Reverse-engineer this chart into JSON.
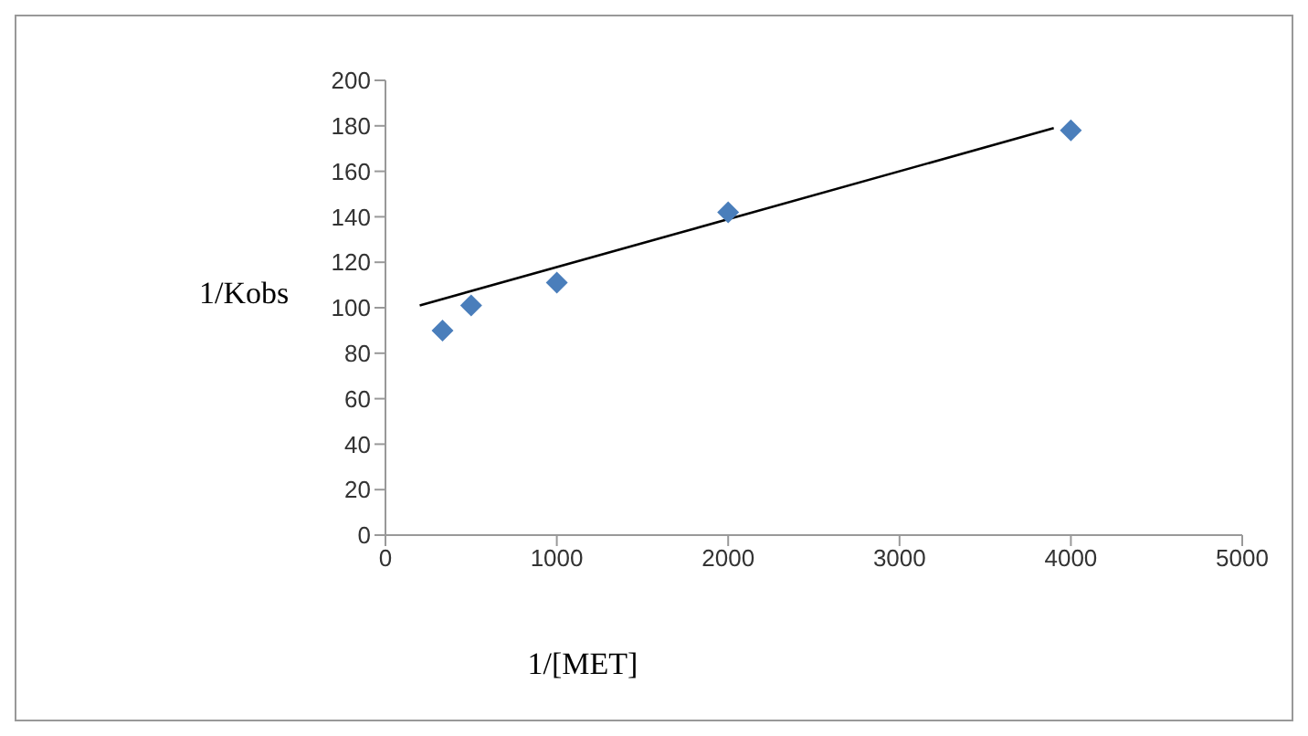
{
  "chart_data": {
    "type": "scatter",
    "xlabel": "1/[MET]",
    "ylabel": "1/Kobs",
    "xlim": [
      0,
      5000
    ],
    "xticks": [
      0,
      1000,
      2000,
      3000,
      4000,
      5000
    ],
    "ylim": [
      0,
      200
    ],
    "yticks": [
      0,
      20,
      40,
      60,
      80,
      100,
      120,
      140,
      160,
      180,
      200
    ],
    "grid": false,
    "series": [
      {
        "color": "#4a7ebb",
        "marker": "diamond",
        "x": [
          333,
          500,
          1000,
          2000,
          4000
        ],
        "values": [
          90,
          101,
          111,
          142,
          178
        ]
      },
      {
        "type": "line",
        "color": "#000000",
        "marker": "none",
        "x": [
          200,
          3900
        ],
        "values": [
          101,
          179
        ]
      }
    ]
  }
}
